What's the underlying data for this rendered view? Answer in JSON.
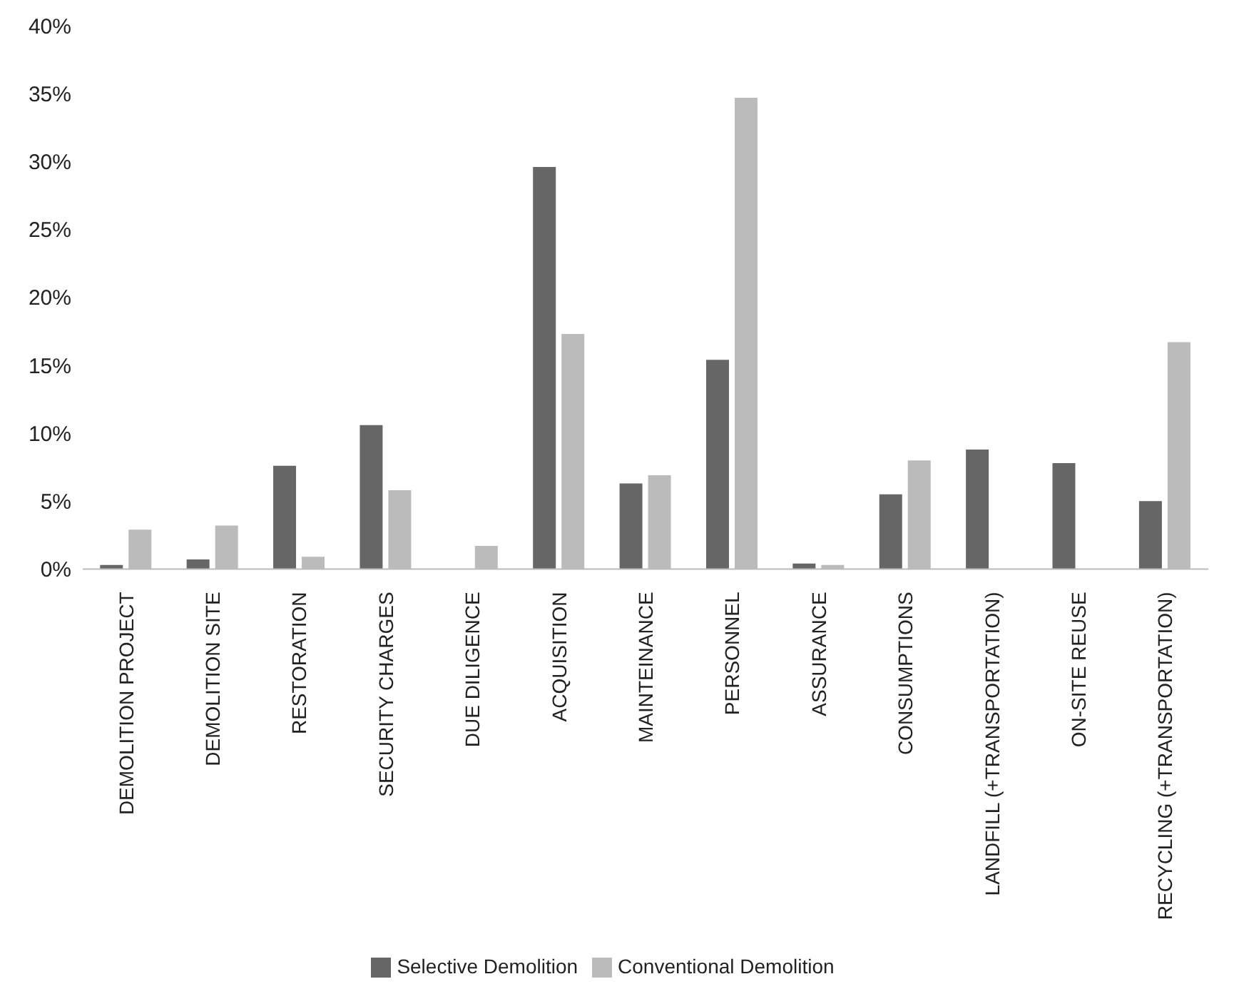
{
  "chart_data": {
    "type": "bar",
    "categories": [
      "DEMOLITION PROJECT",
      "DEMOLITION SITE",
      "RESTORATION",
      "SECURITY CHARGES",
      "DUE DILIGENCE",
      "ACQUISITION",
      "MAINTEINANCE",
      "PERSONNEL",
      "ASSURANCE",
      "CONSUMPTIONS",
      "LANDFILL (+TRANSPORTATION)",
      "ON-SITE REUSE",
      "RECYCLING (+TRANSPORTATION)"
    ],
    "series": [
      {
        "name": "Selective Demolition",
        "color": "#666666",
        "values": [
          0.3,
          0.7,
          7.6,
          10.6,
          null,
          29.6,
          6.3,
          15.4,
          0.4,
          5.5,
          8.8,
          7.8,
          5.0
        ]
      },
      {
        "name": "Conventional Demolition",
        "color": "#bbbbbb",
        "values": [
          2.9,
          3.2,
          0.9,
          5.8,
          1.7,
          17.3,
          6.9,
          34.7,
          0.3,
          8.0,
          null,
          null,
          16.7
        ]
      }
    ],
    "ylim": [
      0,
      40
    ],
    "yticks": [
      {
        "value": 0,
        "label": "0%"
      },
      {
        "value": 5,
        "label": "5%"
      },
      {
        "value": 10,
        "label": "10%"
      },
      {
        "value": 15,
        "label": "15%"
      },
      {
        "value": 20,
        "label": "20%"
      },
      {
        "value": 25,
        "label": "25%"
      },
      {
        "value": 30,
        "label": "30%"
      },
      {
        "value": 35,
        "label": "35%"
      },
      {
        "value": 40,
        "label": "40%"
      }
    ],
    "grid": false,
    "legend": "bottom"
  }
}
